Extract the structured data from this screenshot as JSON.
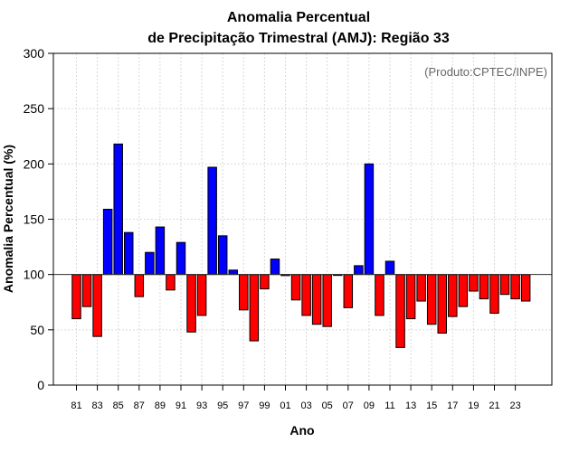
{
  "chart_data": {
    "type": "bar",
    "title_line1": "Anomalia Percentual",
    "title_line2": "de Precipitação Trimestral (AMJ): Região 33",
    "xlabel": "Ano",
    "ylabel": "Anomalia Percentual (%)",
    "credit": "(Produto:CPTEC/INPE)",
    "baseline": 100,
    "ylim": [
      0,
      300
    ],
    "yticks": [
      0,
      50,
      100,
      150,
      200,
      250,
      300
    ],
    "categories": [
      "81",
      "82",
      "83",
      "84",
      "85",
      "86",
      "87",
      "88",
      "89",
      "90",
      "91",
      "92",
      "93",
      "94",
      "95",
      "96",
      "97",
      "98",
      "99",
      "00",
      "01",
      "02",
      "03",
      "04",
      "05",
      "06",
      "07",
      "08",
      "09",
      "10",
      "11",
      "12",
      "13",
      "14",
      "15",
      "16",
      "17",
      "18",
      "19",
      "20",
      "21",
      "22",
      "23",
      "24"
    ],
    "xtick_labels": [
      "81",
      "83",
      "85",
      "87",
      "89",
      "91",
      "93",
      "95",
      "97",
      "99",
      "01",
      "03",
      "05",
      "07",
      "09",
      "11",
      "13",
      "15",
      "17",
      "19",
      "21",
      "23"
    ],
    "values": [
      60,
      71,
      44,
      159,
      218,
      138,
      80,
      120,
      143,
      86,
      129,
      48,
      63,
      197,
      135,
      104,
      68,
      40,
      87,
      114,
      99,
      77,
      63,
      55,
      53,
      100,
      70,
      108,
      200,
      63,
      112,
      34,
      60,
      76,
      55,
      47,
      62,
      71,
      85,
      78,
      65,
      82,
      78,
      76
    ],
    "colors": {
      "above": "#0000ff",
      "below": "#ff0000",
      "baseline_line": "#333333",
      "grid": "#d9d9d9"
    },
    "grid": true
  }
}
